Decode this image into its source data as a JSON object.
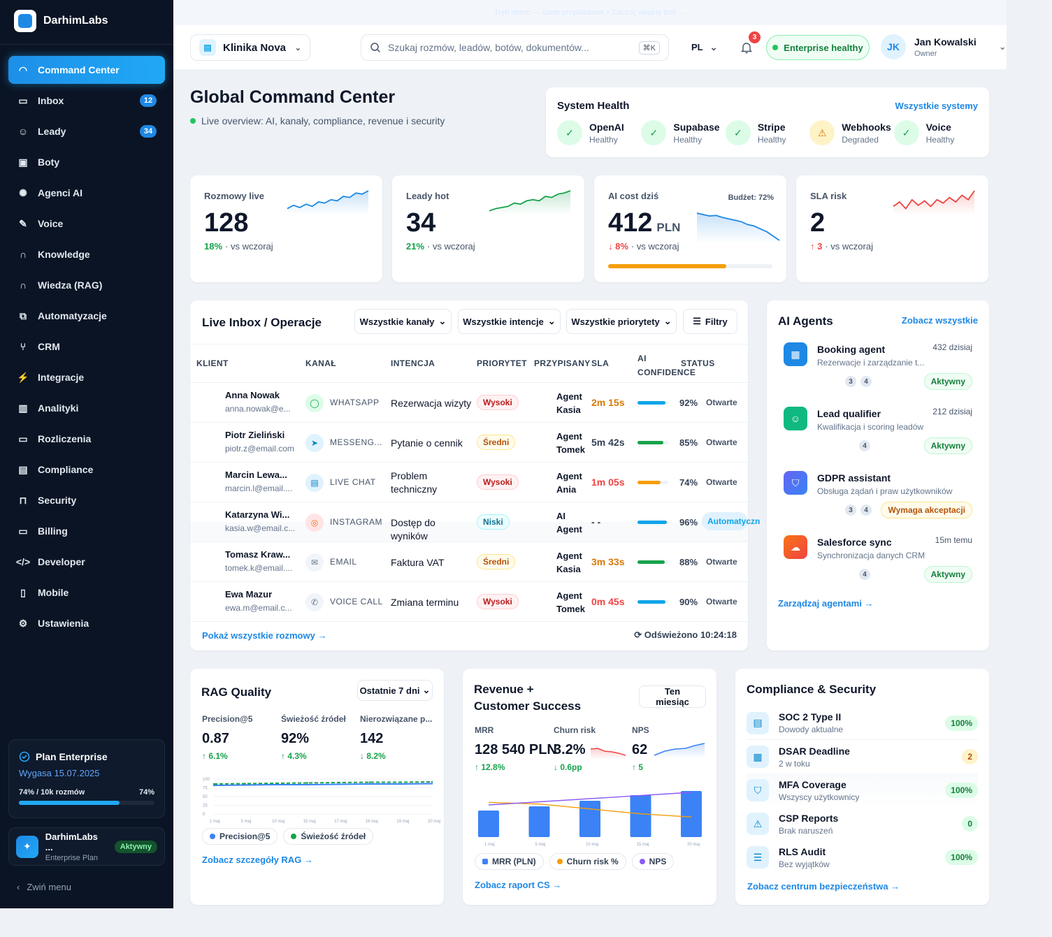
{
  "app": {
    "name": "DarhimLabs"
  },
  "banner": {
    "text": "Tryb demo — dane przykładowe • Zacznij własny trial →"
  },
  "sidebar": {
    "items": [
      {
        "label": "Command Center",
        "icon": "gauge-icon",
        "active": true
      },
      {
        "label": "Inbox",
        "icon": "inbox-icon",
        "badge": "12"
      },
      {
        "label": "Leady",
        "icon": "users-icon",
        "badge": "34"
      },
      {
        "label": "Boty",
        "icon": "bot-icon"
      },
      {
        "label": "Agenci AI",
        "icon": "brain-icon"
      },
      {
        "label": "Voice",
        "icon": "mic-icon"
      },
      {
        "label": "Knowledge",
        "icon": "headphones-icon"
      },
      {
        "label": "Wiedza (RAG)",
        "icon": "headphones-icon"
      },
      {
        "label": "Automatyzacje",
        "icon": "workflow-icon"
      },
      {
        "label": "CRM",
        "icon": "branch-icon"
      },
      {
        "label": "Integracje",
        "icon": "plug-icon"
      },
      {
        "label": "Analityki",
        "icon": "bar-chart-icon"
      },
      {
        "label": "Rozliczenia",
        "icon": "card-icon"
      },
      {
        "label": "Compliance",
        "icon": "clipboard-icon"
      },
      {
        "label": "Security",
        "icon": "lock-icon"
      },
      {
        "label": "Billing",
        "icon": "card-icon"
      },
      {
        "label": "Developer",
        "icon": "code-icon"
      },
      {
        "label": "Mobile",
        "icon": "phone-icon"
      },
      {
        "label": "Ustawienia",
        "icon": "gear-icon"
      }
    ],
    "plan": {
      "title": "Plan Enterprise",
      "expires": "Wygasa 15.07.2025",
      "usage_label": "74% / 10k rozmów",
      "usage_pct": "74%",
      "usage_fraction": 0.74
    },
    "org": {
      "name": "DarhimLabs ...",
      "plan": "Enterprise Plan",
      "badge": "Aktywny"
    },
    "collapse": "Zwiń menu"
  },
  "topbar": {
    "clinic": "Klinika Nova",
    "search_placeholder": "Szukaj rozmów, leadów, botów, dokumentów...",
    "shortcut": "⌘K",
    "lang": "PL",
    "notif_count": "3",
    "health": "Enterprise healthy",
    "user": {
      "initials": "JK",
      "name": "Jan Kowalski",
      "role": "Owner"
    }
  },
  "header": {
    "title": "Global Command Center",
    "subtitle": "Live overview: AI, kanały, compliance, revenue i security"
  },
  "system_health": {
    "title": "System Health",
    "link": "Wszystkie systemy",
    "items": [
      {
        "name": "OpenAI",
        "status": "Healthy"
      },
      {
        "name": "Supabase",
        "status": "Healthy"
      },
      {
        "name": "Stripe",
        "status": "Healthy"
      },
      {
        "name": "Webhooks",
        "status": "Degraded"
      },
      {
        "name": "Voice",
        "status": "Healthy"
      }
    ]
  },
  "kpis": [
    {
      "label": "Rozmowy live",
      "value": "128",
      "delta": "18%",
      "delta_note": "· vs wczoraj",
      "color": "#1e88e5"
    },
    {
      "label": "Leady hot",
      "value": "34",
      "delta": "21%",
      "delta_note": "· vs wczoraj",
      "color": "#16a34a"
    },
    {
      "label": "AI cost dziś",
      "value": "412",
      "unit": "PLN",
      "delta": "↓ 8%",
      "delta_note": "· vs wczoraj",
      "budget": "Budżet: 72%",
      "budget_fraction": 0.72,
      "color": "#1e88e5"
    },
    {
      "label": "SLA risk",
      "value": "2",
      "delta": "↑ 3",
      "delta_note": "· vs wczoraj",
      "color": "#ef4444"
    }
  ],
  "inbox": {
    "title": "Live Inbox / Operacje",
    "filters": [
      "Wszystkie kanały",
      "Wszystkie intencje",
      "Wszystkie priorytety",
      "Filtry"
    ],
    "columns": [
      "KLIENT",
      "KANAŁ",
      "INTENCJA",
      "PRIORYTET",
      "PRZYPISANY",
      "SLA",
      "AI CONFIDENCE",
      "STATUS"
    ],
    "rows": [
      {
        "name": "Anna Nowak",
        "email": "anna.nowak@e...",
        "channel": "WHATSAPP",
        "intent": "Rezerwacja wizyty",
        "priority": "Wysoki",
        "assigned": "Agent Kasia",
        "sla": "2m 15s",
        "conf": "92%",
        "conf_value": 0.92,
        "status": "Otwarte"
      },
      {
        "name": "Piotr Zieliński",
        "email": "piotr.z@email.com",
        "channel": "MESSENG...",
        "intent": "Pytanie o cennik",
        "priority": "Średni",
        "assigned": "Agent Tomek",
        "sla": "5m 42s",
        "conf": "85%",
        "conf_value": 0.85,
        "status": "Otwarte"
      },
      {
        "name": "Marcin Lewa...",
        "email": "marcin.l@email....",
        "channel": "LIVE CHAT",
        "intent": "Problem techniczny",
        "priority": "Wysoki",
        "assigned": "Agent Ania",
        "sla": "1m 05s",
        "conf": "74%",
        "conf_value": 0.74,
        "status": "Otwarte"
      },
      {
        "name": "Katarzyna Wi...",
        "email": "kasia.w@email.c...",
        "channel": "INSTAGRAM",
        "intent": "Dostęp do wyników",
        "priority": "Niski",
        "assigned": "AI Agent",
        "sla": "- -",
        "conf": "96%",
        "conf_value": 0.96,
        "status": "Automatyczn"
      },
      {
        "name": "Tomasz Kraw...",
        "email": "tomek.k@email....",
        "channel": "EMAIL",
        "intent": "Faktura VAT",
        "priority": "Średni",
        "assigned": "Agent Kasia",
        "sla": "3m 33s",
        "conf": "88%",
        "conf_value": 0.88,
        "status": "Otwarte"
      },
      {
        "name": "Ewa Mazur",
        "email": "ewa.m@email.c...",
        "channel": "VOICE CALL",
        "intent": "Zmiana terminu",
        "priority": "Wysoki",
        "assigned": "Agent Tomek",
        "sla": "0m 45s",
        "conf": "90%",
        "conf_value": 0.9,
        "status": "Otwarte"
      }
    ],
    "show_all": "Pokaż wszystkie rozmowy →",
    "refreshed": "Odświeżono 10:24:18"
  },
  "agents": {
    "title": "AI Agents",
    "link": "Zobacz wszystkie",
    "items": [
      {
        "name": "Booking agent",
        "desc": "Rezerwacje i zarządzanie t...",
        "count": "432 dzisiaj",
        "chips": [
          "3",
          "4"
        ],
        "status": "Aktywny",
        "icon": "calendar-icon"
      },
      {
        "name": "Lead qualifier",
        "desc": "Kwalifikacja i scoring leadów",
        "count": "212 dzisiaj",
        "chips": [
          "4"
        ],
        "status": "Aktywny",
        "icon": "users-icon"
      },
      {
        "name": "GDPR assistant",
        "desc": "Obsługa żądań i praw użytkowników",
        "count": "",
        "chips": [
          "3",
          "4"
        ],
        "status": "Wymaga akceptacji",
        "icon": "shield-icon"
      },
      {
        "name": "Salesforce sync",
        "desc": "Synchronizacja danych CRM",
        "count": "15m temu",
        "chips": [
          "4"
        ],
        "status": "Aktywny",
        "icon": "cloud-icon"
      }
    ],
    "manage": "Zarządzaj agentami →"
  },
  "rag": {
    "title": "RAG Quality",
    "range": "Ostatnie 7 dni",
    "metrics": [
      {
        "label": "Precision@5",
        "value": "0.87",
        "delta": "↑ 6.1%"
      },
      {
        "label": "Świeżość źródeł",
        "value": "92%",
        "delta": "↑ 4.3%"
      },
      {
        "label": "Nierozwiązane p...",
        "value": "142",
        "delta": "↓ 8.2%"
      }
    ],
    "legend": [
      "Precision@5",
      "Świeżość źródeł"
    ],
    "link": "Zobacz szczegóły RAG →"
  },
  "revenue": {
    "title_1": "Revenue +",
    "title_2": "Customer Success",
    "range_1": "Ten",
    "range_2": "miesiąc",
    "metrics": [
      {
        "label": "MRR",
        "value": "128 540 PLN",
        "delta": "↑ 12.8%"
      },
      {
        "label": "Churn risk",
        "value": "3.2%",
        "delta": "↓ 0.6pp"
      },
      {
        "label": "NPS",
        "value": "62",
        "delta": "↑ 5"
      }
    ],
    "legend": [
      "MRR (PLN)",
      "Churn risk %",
      "NPS"
    ],
    "link": "Zobacz raport CS →"
  },
  "compliance": {
    "title": "Compliance & Security",
    "items": [
      {
        "name": "SOC 2 Type II",
        "sub": "Dowody aktualne",
        "badge": "100%",
        "icon": "clipboard-icon"
      },
      {
        "name": "DSAR Deadline",
        "sub": "2 w toku",
        "badge": "2",
        "icon": "calendar-icon"
      },
      {
        "name": "MFA Coverage",
        "sub": "Wszyscy użytkownicy",
        "badge": "100%",
        "icon": "shield-icon"
      },
      {
        "name": "CSP Reports",
        "sub": "Brak naruszeń",
        "badge": "0",
        "icon": "warning-icon"
      },
      {
        "name": "RLS Audit",
        "sub": "Bez wyjątków",
        "badge": "100%",
        "icon": "database-icon"
      }
    ],
    "link": "Zobacz centrum bezpieczeństwa →"
  },
  "chart_data": [
    {
      "type": "line",
      "x": [
        "1 maj",
        "5 maj",
        "10 maj",
        "15 maj",
        "17 maj",
        "18 maj",
        "19 maj",
        "20 maj"
      ],
      "ylim": [
        0,
        100
      ],
      "yticks": [
        "100",
        "75",
        "50",
        "25",
        "0"
      ],
      "series": [
        {
          "name": "Precision@5",
          "values": [
            82,
            83,
            84,
            84,
            85,
            86,
            86,
            87
          ],
          "color": "#3b82f6"
        },
        {
          "name": "Świeżość źródeł",
          "values": [
            86,
            87,
            88,
            89,
            90,
            91,
            91,
            92
          ],
          "color": "#16a34a"
        }
      ]
    },
    {
      "type": "bar",
      "x": [
        "1 maj",
        "5 maj",
        "10 maj",
        "15 maj",
        "20 maj"
      ],
      "series": [
        {
          "name": "MRR (PLN)",
          "values": [
            95,
            110,
            130,
            150,
            165
          ],
          "color": "#3b82f6"
        },
        {
          "name": "Churn risk %",
          "values": [
            4.1,
            4.0,
            3.7,
            3.4,
            3.2
          ],
          "color": "#f59e0b"
        },
        {
          "name": "NPS",
          "values": [
            50,
            53,
            56,
            59,
            62
          ],
          "color": "#8b5cf6"
        }
      ]
    }
  ]
}
